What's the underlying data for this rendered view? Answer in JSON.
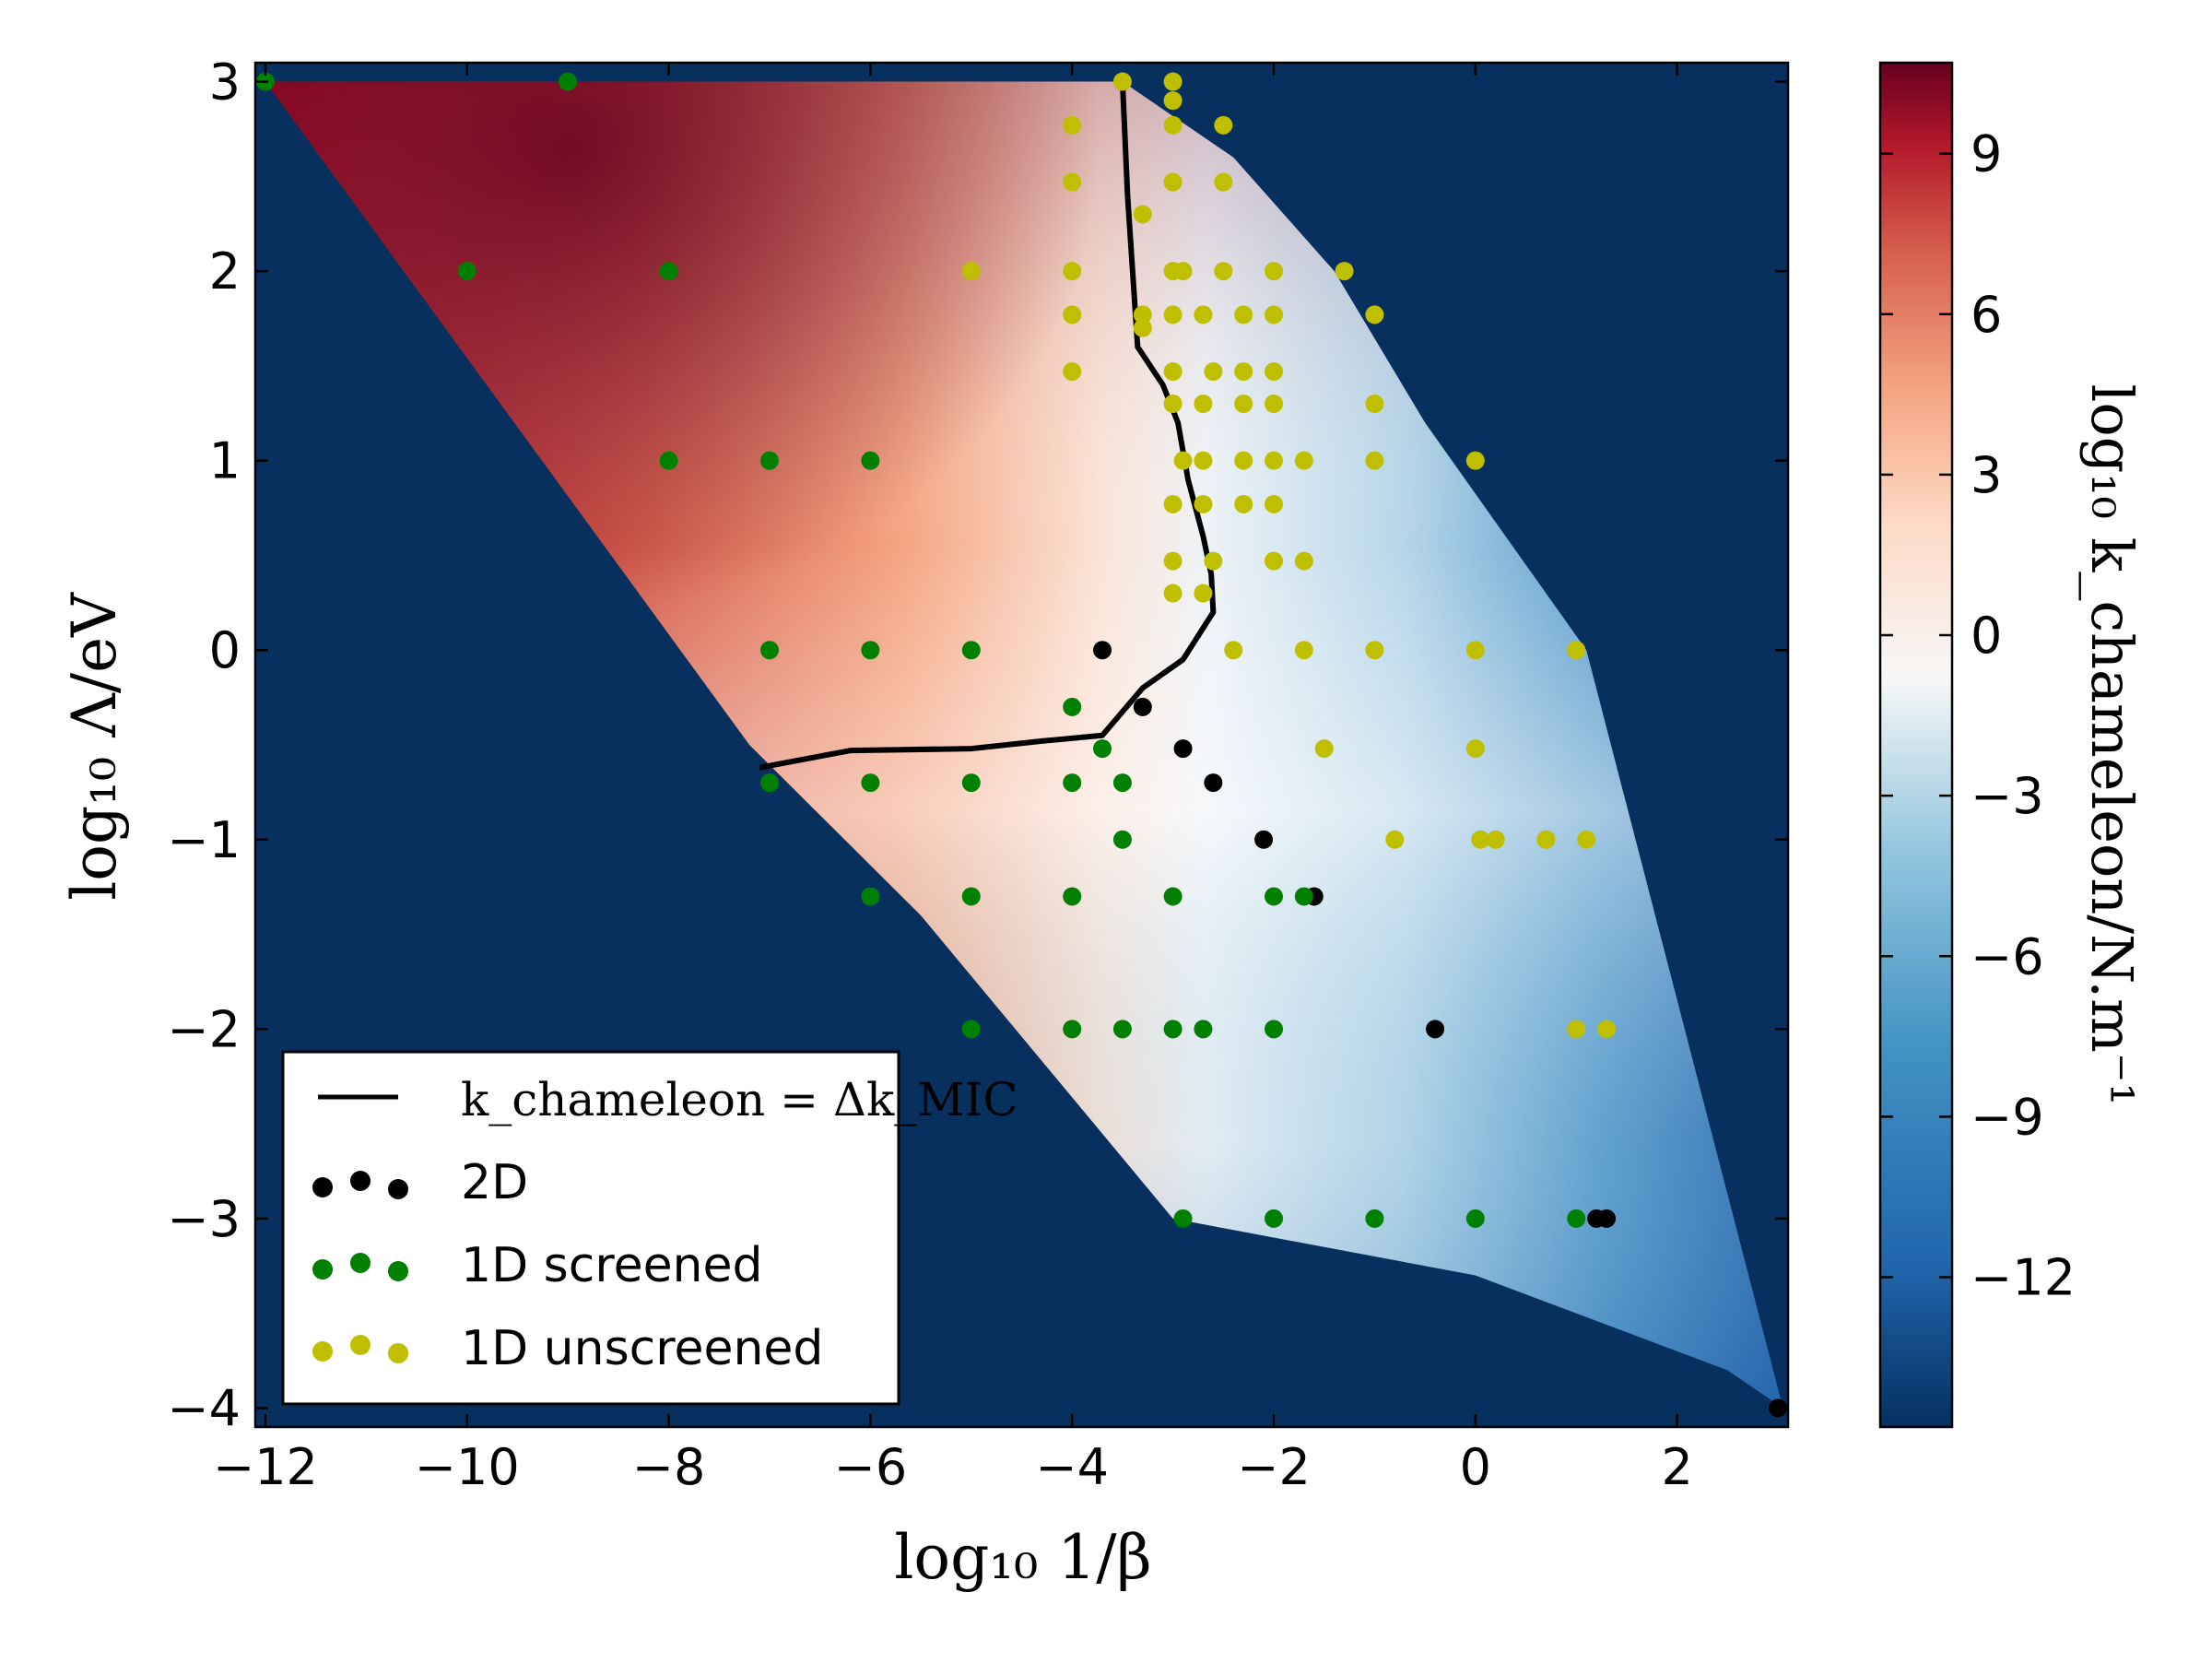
{
  "chart_data": {
    "type": "heatmap",
    "xlabel": "log₁₀ 1/β",
    "ylabel": "log₁₀ Λ/eV",
    "colorbar_label": "log₁₀ k_chameleon/N.m⁻¹",
    "xlim": [
      -12.1,
      3.1
    ],
    "ylim": [
      -4.1,
      3.1
    ],
    "colorbar_range": [
      -14.8,
      10.7
    ],
    "x_ticks": [
      -12,
      -10,
      -8,
      -6,
      -4,
      -2,
      0,
      2
    ],
    "x_tick_labels": [
      "−12",
      "−10",
      "−8",
      "−6",
      "−4",
      "−2",
      "0",
      "2"
    ],
    "y_ticks": [
      -4,
      -3,
      -2,
      -1,
      0,
      1,
      2,
      3
    ],
    "y_tick_labels": [
      "−4",
      "−3",
      "−2",
      "−1",
      "0",
      "1",
      "2",
      "3"
    ],
    "colorbar_ticks": [
      9,
      6,
      3,
      0,
      -3,
      -6,
      -9,
      -12
    ],
    "colorbar_tick_labels": [
      "9",
      "6",
      "3",
      "0",
      "−3",
      "−6",
      "−9",
      "−12"
    ],
    "colors": {
      "background": "#08305f",
      "red_dark": "#67001f",
      "red": "#b2182b",
      "salmon": "#f4a582",
      "white": "#f7f7f7",
      "light_blue": "#92c5de",
      "blue": "#2166ac",
      "navy": "#053061",
      "point_2d": "#000000",
      "point_screened": "#008000",
      "point_unscreened": "#bfbf00"
    },
    "region_boundary": [
      [
        -12,
        3
      ],
      [
        -3.5,
        3
      ],
      [
        -2.4,
        2.6
      ],
      [
        -1.4,
        2.0
      ],
      [
        -0.5,
        1.2
      ],
      [
        1.1,
        0.0
      ],
      [
        3.05,
        -4.0
      ],
      [
        2.5,
        -3.8
      ],
      [
        0,
        -3.3
      ],
      [
        -3.0,
        -3.0
      ],
      [
        -5.5,
        -1.4
      ],
      [
        -7.2,
        -0.5
      ]
    ],
    "legend": {
      "location": "lower-left",
      "entries": [
        {
          "label": "k_chameleon = Δk_MIC",
          "kind": "line"
        },
        {
          "label": "2D",
          "kind": "points"
        },
        {
          "label": "1D screened",
          "kind": "points"
        },
        {
          "label": "1D unscreened",
          "kind": "points"
        }
      ]
    },
    "series": [
      {
        "name": "k_chameleon = Δk_MIC",
        "type": "line",
        "color": "#000000",
        "points": [
          [
            -3.5,
            3.0
          ],
          [
            -3.45,
            2.4
          ],
          [
            -3.4,
            2.0
          ],
          [
            -3.35,
            1.6
          ],
          [
            -3.1,
            1.4
          ],
          [
            -2.95,
            1.2
          ],
          [
            -2.85,
            0.9
          ],
          [
            -2.7,
            0.6
          ],
          [
            -2.62,
            0.4
          ],
          [
            -2.6,
            0.2
          ],
          [
            -2.9,
            -0.05
          ],
          [
            -3.3,
            -0.2
          ],
          [
            -3.7,
            -0.45
          ],
          [
            -4.3,
            -0.48
          ],
          [
            -5.0,
            -0.52
          ],
          [
            -6.2,
            -0.53
          ],
          [
            -7.1,
            -0.62
          ]
        ]
      },
      {
        "name": "2D",
        "type": "scatter",
        "color": "#000000",
        "points": [
          [
            -3.7,
            0
          ],
          [
            -3.3,
            -0.3
          ],
          [
            -2.9,
            -0.52
          ],
          [
            -2.6,
            -0.7
          ],
          [
            -2.1,
            -1.0
          ],
          [
            -1.6,
            -1.3
          ],
          [
            -0.4,
            -2.0
          ],
          [
            1.2,
            -3.0
          ],
          [
            1.3,
            -3.0
          ],
          [
            3.0,
            -4.0
          ]
        ]
      },
      {
        "name": "1D screened",
        "type": "scatter",
        "color": "#008000",
        "points": [
          [
            -12,
            3
          ],
          [
            -9,
            3
          ],
          [
            -10,
            2
          ],
          [
            -8,
            2
          ],
          [
            -8,
            1
          ],
          [
            -7,
            1
          ],
          [
            -6,
            1
          ],
          [
            -7,
            0
          ],
          [
            -6,
            0
          ],
          [
            -5,
            0
          ],
          [
            -4,
            -0.3
          ],
          [
            -3.7,
            -0.52
          ],
          [
            -7,
            -0.7
          ],
          [
            -6,
            -0.7
          ],
          [
            -5,
            -0.7
          ],
          [
            -4,
            -0.7
          ],
          [
            -3.5,
            -0.7
          ],
          [
            -3.5,
            -1.0
          ],
          [
            -6,
            -1.3
          ],
          [
            -5,
            -1.3
          ],
          [
            -4,
            -1.3
          ],
          [
            -3,
            -1.3
          ],
          [
            -2,
            -1.3
          ],
          [
            -1.7,
            -1.3
          ],
          [
            -5,
            -2.0
          ],
          [
            -4,
            -2.0
          ],
          [
            -3.5,
            -2.0
          ],
          [
            -3,
            -2.0
          ],
          [
            -2.7,
            -2.0
          ],
          [
            -2,
            -2.0
          ],
          [
            -2.9,
            -3.0
          ],
          [
            -2,
            -3.0
          ],
          [
            -1,
            -3.0
          ],
          [
            0,
            -3.0
          ],
          [
            1,
            -3.0
          ]
        ]
      },
      {
        "name": "1D unscreened",
        "type": "scatter",
        "color": "#bfbf00",
        "points": [
          [
            -3.5,
            3.0
          ],
          [
            -3.0,
            3.0
          ],
          [
            -3.0,
            2.9
          ],
          [
            -4,
            2.77
          ],
          [
            -3.0,
            2.77
          ],
          [
            -2.5,
            2.77
          ],
          [
            -4,
            2.47
          ],
          [
            -3.0,
            2.47
          ],
          [
            -2.5,
            2.47
          ],
          [
            -3.3,
            2.3
          ],
          [
            -5,
            2.0
          ],
          [
            -4,
            2.0
          ],
          [
            -3.0,
            2.0
          ],
          [
            -2.9,
            2.0
          ],
          [
            -2.5,
            2.0
          ],
          [
            -2,
            2.0
          ],
          [
            -1.3,
            2.0
          ],
          [
            -4,
            1.77
          ],
          [
            -3.3,
            1.77
          ],
          [
            -3.0,
            1.77
          ],
          [
            -2.7,
            1.77
          ],
          [
            -2.3,
            1.77
          ],
          [
            -2,
            1.77
          ],
          [
            -1,
            1.77
          ],
          [
            -3.3,
            1.7
          ],
          [
            -4,
            1.47
          ],
          [
            -3.0,
            1.47
          ],
          [
            -2.6,
            1.47
          ],
          [
            -2.3,
            1.47
          ],
          [
            -2,
            1.47
          ],
          [
            -3.0,
            1.3
          ],
          [
            -2.7,
            1.3
          ],
          [
            -2.3,
            1.3
          ],
          [
            -2,
            1.3
          ],
          [
            -1,
            1.3
          ],
          [
            -2.9,
            1.0
          ],
          [
            -2.7,
            1.0
          ],
          [
            -2.3,
            1.0
          ],
          [
            -2,
            1.0
          ],
          [
            -1.7,
            1.0
          ],
          [
            -1,
            1.0
          ],
          [
            0,
            1.0
          ],
          [
            -3.0,
            0.77
          ],
          [
            -2.7,
            0.77
          ],
          [
            -2.3,
            0.77
          ],
          [
            -2,
            0.77
          ],
          [
            -3.0,
            0.47
          ],
          [
            -2.6,
            0.47
          ],
          [
            -2,
            0.47
          ],
          [
            -1.7,
            0.47
          ],
          [
            -3.0,
            0.3
          ],
          [
            -2.7,
            0.3
          ],
          [
            -2.4,
            0.0
          ],
          [
            -1.7,
            0.0
          ],
          [
            -1,
            0.0
          ],
          [
            0,
            0.0
          ],
          [
            1,
            0.0
          ],
          [
            -1.5,
            -0.52
          ],
          [
            0,
            -0.52
          ],
          [
            -0.8,
            -1.0
          ],
          [
            0.05,
            -1.0
          ],
          [
            0.2,
            -1.0
          ],
          [
            0.7,
            -1.0
          ],
          [
            1.1,
            -1.0
          ],
          [
            1,
            -2.0
          ],
          [
            1.3,
            -2.0
          ]
        ]
      }
    ]
  }
}
